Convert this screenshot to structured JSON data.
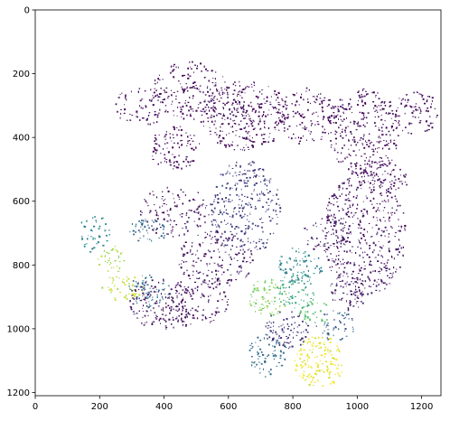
{
  "chart_data": {
    "type": "heatmap",
    "title": "",
    "xlabel": "",
    "ylabel": "",
    "xlim": [
      0,
      1260
    ],
    "ylim": [
      1210,
      0
    ],
    "x_ticks": [
      0,
      200,
      400,
      600,
      800,
      1000,
      1200
    ],
    "y_ticks": [
      0,
      200,
      400,
      600,
      800,
      1000,
      1200
    ],
    "x_tick_labels": [
      "0",
      "200",
      "400",
      "600",
      "800",
      "1000",
      "1200"
    ],
    "y_tick_labels": [
      "0",
      "200",
      "400",
      "600",
      "800",
      "1000",
      "1200"
    ],
    "colormap": "viridis",
    "colormap_colors": [
      "#440154",
      "#3b528b",
      "#21918c",
      "#5ec962",
      "#fde725"
    ],
    "background": "#ffffff",
    "grid": false,
    "clusters": [
      {
        "cx": 330,
        "cy": 300,
        "rx": 90,
        "ry": 60,
        "v": 0.02,
        "d": 0.35
      },
      {
        "cx": 480,
        "cy": 250,
        "rx": 120,
        "ry": 90,
        "v": 0.02,
        "d": 0.45
      },
      {
        "cx": 430,
        "cy": 430,
        "rx": 80,
        "ry": 70,
        "v": 0.02,
        "d": 0.55
      },
      {
        "cx": 650,
        "cy": 330,
        "rx": 140,
        "ry": 110,
        "v": 0.02,
        "d": 0.6
      },
      {
        "cx": 840,
        "cy": 330,
        "rx": 90,
        "ry": 90,
        "v": 0.02,
        "d": 0.45
      },
      {
        "cx": 1020,
        "cy": 380,
        "rx": 110,
        "ry": 140,
        "v": 0.02,
        "d": 0.55
      },
      {
        "cx": 1180,
        "cy": 320,
        "rx": 70,
        "ry": 70,
        "v": 0.02,
        "d": 0.5
      },
      {
        "cx": 1020,
        "cy": 700,
        "rx": 130,
        "ry": 200,
        "v": 0.05,
        "d": 0.5
      },
      {
        "cx": 1080,
        "cy": 520,
        "rx": 80,
        "ry": 60,
        "v": 0.02,
        "d": 0.45
      },
      {
        "cx": 650,
        "cy": 620,
        "rx": 110,
        "ry": 150,
        "v": 0.18,
        "d": 0.5
      },
      {
        "cx": 560,
        "cy": 780,
        "rx": 120,
        "ry": 90,
        "v": 0.05,
        "d": 0.45
      },
      {
        "cx": 430,
        "cy": 630,
        "rx": 110,
        "ry": 80,
        "v": 0.05,
        "d": 0.4
      },
      {
        "cx": 350,
        "cy": 690,
        "rx": 60,
        "ry": 40,
        "v": 0.35,
        "d": 0.6
      },
      {
        "cx": 180,
        "cy": 700,
        "rx": 50,
        "ry": 60,
        "v": 0.45,
        "d": 0.4
      },
      {
        "cx": 240,
        "cy": 780,
        "rx": 50,
        "ry": 40,
        "v": 0.85,
        "d": 0.5
      },
      {
        "cx": 270,
        "cy": 870,
        "rx": 70,
        "ry": 40,
        "v": 0.9,
        "d": 0.55
      },
      {
        "cx": 350,
        "cy": 880,
        "rx": 70,
        "ry": 50,
        "v": 0.35,
        "d": 0.6
      },
      {
        "cx": 390,
        "cy": 920,
        "rx": 100,
        "ry": 80,
        "v": 0.05,
        "d": 0.55
      },
      {
        "cx": 500,
        "cy": 920,
        "rx": 100,
        "ry": 80,
        "v": 0.03,
        "d": 0.35
      },
      {
        "cx": 720,
        "cy": 900,
        "rx": 60,
        "ry": 60,
        "v": 0.8,
        "d": 0.6
      },
      {
        "cx": 810,
        "cy": 880,
        "rx": 60,
        "ry": 60,
        "v": 0.6,
        "d": 0.6
      },
      {
        "cx": 820,
        "cy": 800,
        "rx": 70,
        "ry": 60,
        "v": 0.45,
        "d": 0.55
      },
      {
        "cx": 780,
        "cy": 1000,
        "rx": 70,
        "ry": 60,
        "v": 0.15,
        "d": 0.6
      },
      {
        "cx": 880,
        "cy": 1100,
        "rx": 80,
        "ry": 80,
        "v": 0.97,
        "d": 0.7
      },
      {
        "cx": 930,
        "cy": 990,
        "rx": 60,
        "ry": 50,
        "v": 0.3,
        "d": 0.5
      },
      {
        "cx": 720,
        "cy": 1080,
        "rx": 60,
        "ry": 70,
        "v": 0.35,
        "d": 0.5
      },
      {
        "cx": 870,
        "cy": 950,
        "rx": 50,
        "ry": 40,
        "v": 0.7,
        "d": 0.5
      },
      {
        "cx": 970,
        "cy": 880,
        "rx": 60,
        "ry": 60,
        "v": 0.08,
        "d": 0.5
      },
      {
        "cx": 900,
        "cy": 700,
        "rx": 70,
        "ry": 60,
        "v": 0.08,
        "d": 0.4
      }
    ]
  }
}
